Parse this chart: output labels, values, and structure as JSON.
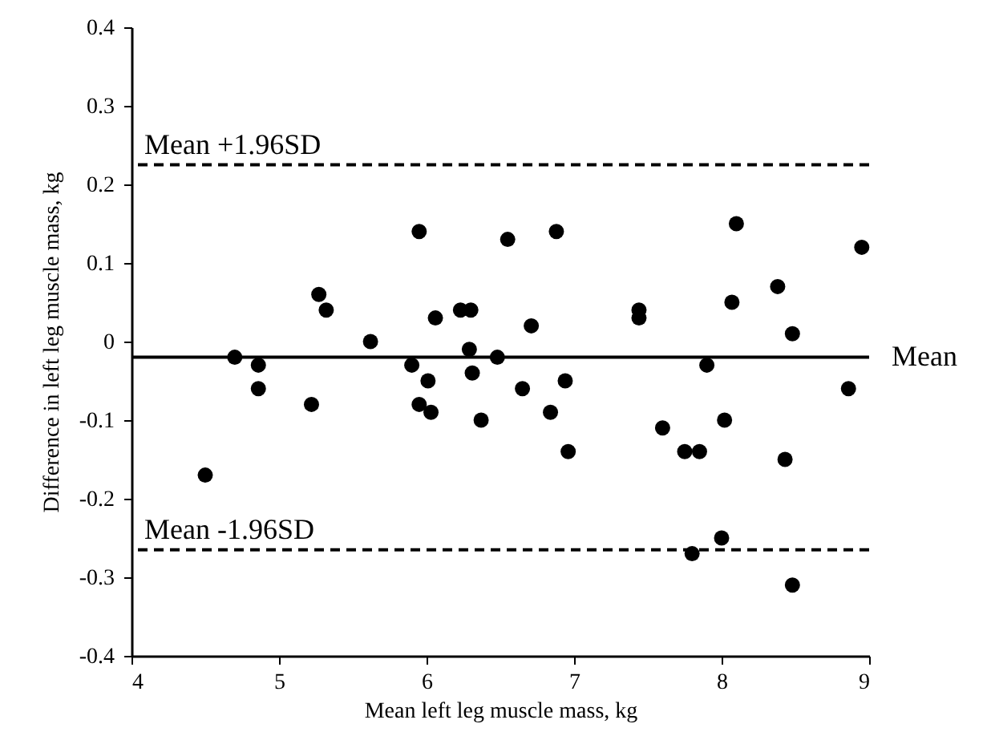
{
  "chart_data": {
    "type": "scatter",
    "xlabel": "Mean left leg muscle mass, kg",
    "ylabel": "Difference in left leg muscle mass, kg",
    "x": [
      4.5,
      4.7,
      4.86,
      4.86,
      5.22,
      5.27,
      5.32,
      5.62,
      5.9,
      5.95,
      5.95,
      6.01,
      6.03,
      6.06,
      6.23,
      6.3,
      6.29,
      6.31,
      6.37,
      6.48,
      6.55,
      6.65,
      6.71,
      6.84,
      6.88,
      6.94,
      6.96,
      7.44,
      7.44,
      7.6,
      7.75,
      7.8,
      7.85,
      7.9,
      8.0,
      8.02,
      8.07,
      8.1,
      8.38,
      8.43,
      8.48,
      8.48,
      8.86,
      8.95
    ],
    "series": [
      {
        "color": "#000000",
        "values": [
          -0.17,
          -0.02,
          -0.03,
          -0.06,
          -0.08,
          0.06,
          0.04,
          0,
          -0.03,
          0.14,
          -0.08,
          -0.05,
          -0.09,
          0.03,
          0.04,
          0.04,
          -0.01,
          -0.04,
          -0.1,
          -0.02,
          0.13,
          -0.06,
          0.02,
          -0.09,
          0.14,
          -0.05,
          -0.14,
          0.04,
          0.03,
          -0.11,
          -0.14,
          -0.27,
          -0.14,
          -0.03,
          -0.25,
          -0.1,
          0.05,
          0.15,
          0.07,
          -0.15,
          0.01,
          -0.31,
          -0.06,
          0.12
        ]
      }
    ],
    "marker": "circle",
    "xlim": [
      4,
      9
    ],
    "xticks": [
      4,
      5,
      6,
      7,
      8,
      9
    ],
    "ylim": [
      -0.4,
      0.4
    ],
    "yticks": [
      -0.4,
      -0.3,
      -0.2,
      -0.1,
      0,
      0.1,
      0.2,
      0.3,
      0.4
    ],
    "ref_lines": [
      {
        "axis": "y",
        "value": 0.225,
        "label": "Mean +1.96SD",
        "line_style": "dashed",
        "color": "#000000"
      },
      {
        "axis": "y",
        "value": -0.02,
        "label": "Mean",
        "line_style": "solid",
        "color": "#000000"
      },
      {
        "axis": "y",
        "value": -0.265,
        "label": "Mean -1.96SD",
        "line_style": "dashed",
        "color": "#000000"
      }
    ]
  }
}
